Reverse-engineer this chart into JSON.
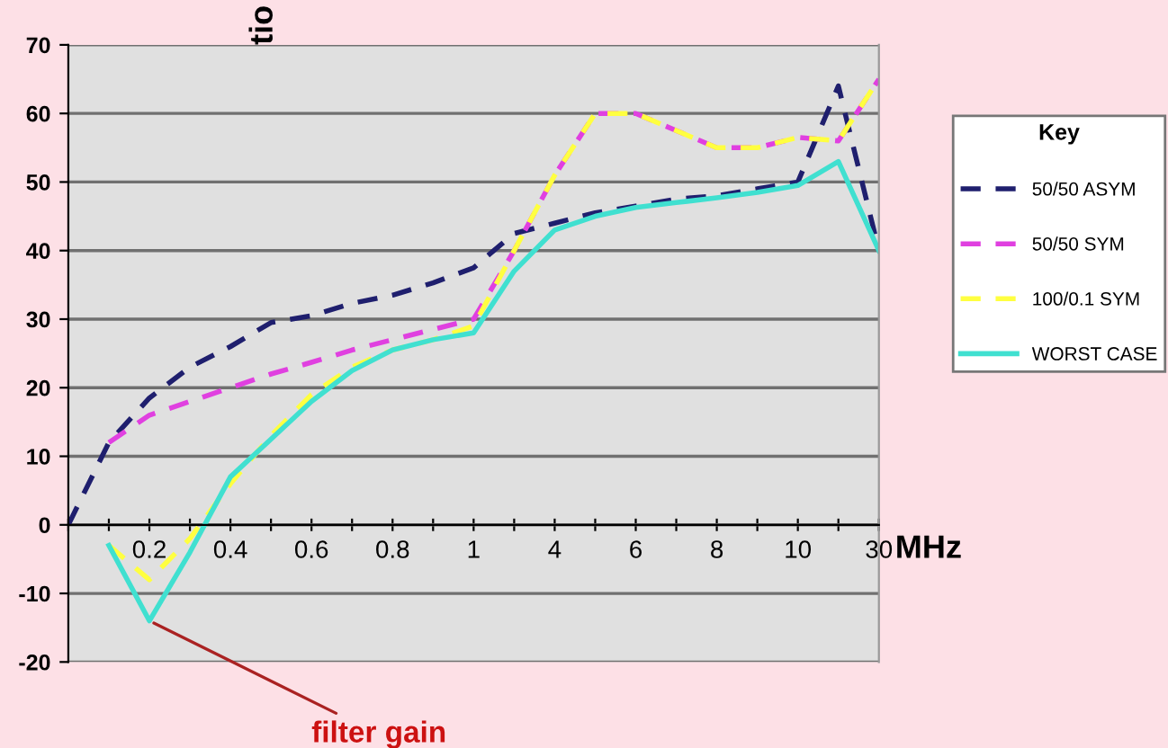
{
  "chart_data": {
    "type": "line",
    "xlabel": "MHz",
    "ylabel": "tio",
    "legend_title": "Key",
    "annotations": [
      {
        "text": "filter gain",
        "x": "0.2",
        "y": -14
      }
    ],
    "categories": [
      null,
      null,
      "0.2",
      null,
      "0.4",
      null,
      "0.6",
      null,
      "0.8",
      null,
      "1",
      null,
      "4",
      null,
      "6",
      null,
      "8",
      null,
      "10",
      null,
      "30"
    ],
    "ylim": [
      -20,
      70
    ],
    "yticks": [
      -20,
      -10,
      0,
      10,
      20,
      30,
      40,
      50,
      60,
      70
    ],
    "grid": "y",
    "legend": "right",
    "series": [
      {
        "name": "50/50 ASYM",
        "color": "#1f1f6e",
        "line_style": "dashed",
        "values": [
          0,
          12,
          18.5,
          23,
          26,
          29.5,
          30.5,
          32.3,
          33.5,
          35.3,
          37.5,
          42.5,
          44,
          45.5,
          46.5,
          47.5,
          48,
          49,
          50,
          64,
          40
        ]
      },
      {
        "name": "50/50 SYM",
        "color": "#e040e0",
        "line_style": "dashed",
        "values": [
          null,
          12,
          16,
          18,
          20,
          22,
          23.7,
          25.5,
          27,
          28.5,
          30,
          40,
          51,
          60,
          60,
          57.5,
          55,
          55,
          56.5,
          56,
          65
        ]
      },
      {
        "name": "100/0.1 SYM",
        "color": "#ffff40",
        "line_style": "dashed",
        "values": [
          null,
          -3,
          -8,
          -2,
          6,
          13,
          19,
          23,
          25.5,
          27,
          29,
          40,
          51,
          60,
          60,
          57.5,
          55,
          55,
          56.5,
          56,
          65
        ]
      },
      {
        "name": "WORST CASE",
        "color": "#40e0d0",
        "line_style": "solid",
        "values": [
          null,
          -3,
          -14,
          -4,
          7,
          12.5,
          18,
          22.5,
          25.5,
          27,
          28,
          37,
          43,
          45,
          46.3,
          47,
          47.7,
          48.5,
          49.5,
          53,
          40
        ]
      }
    ]
  }
}
